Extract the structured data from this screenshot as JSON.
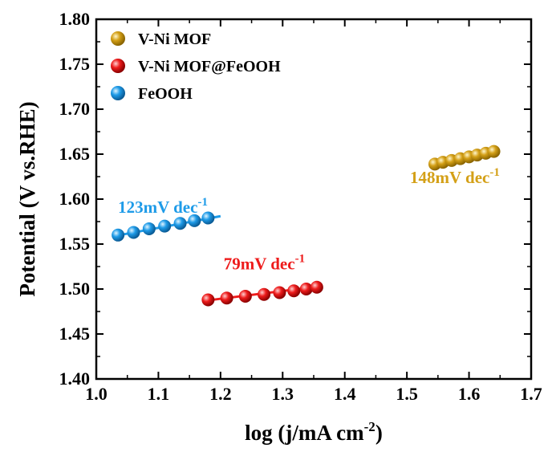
{
  "chart_data": {
    "type": "scatter",
    "xlabel": "log (j/mA cm",
    "xlabel_sup": "-2",
    "xlabel_end": ")",
    "ylabel": "Potential (V vs.RHE)",
    "xlim": [
      1.0,
      1.7
    ],
    "ylim": [
      1.4,
      1.8
    ],
    "xticks": [
      "1.0",
      "1.1",
      "1.2",
      "1.3",
      "1.4",
      "1.5",
      "1.6",
      "1.7"
    ],
    "yticks": [
      "1.40",
      "1.45",
      "1.50",
      "1.55",
      "1.60",
      "1.65",
      "1.70",
      "1.75",
      "1.80"
    ],
    "legend_position": "top-left",
    "series": [
      {
        "name": "V-Ni MOF",
        "color": "#d4a017",
        "x": [
          1.545,
          1.558,
          1.572,
          1.586,
          1.6,
          1.613,
          1.627,
          1.64
        ],
        "y": [
          1.639,
          1.641,
          1.643,
          1.645,
          1.647,
          1.649,
          1.651,
          1.653
        ],
        "fit": {
          "x": [
            1.54,
            1.645
          ],
          "y": [
            1.638,
            1.654
          ]
        }
      },
      {
        "name": "V-Ni MOF@FeOOH",
        "color": "#ee1c1c",
        "x": [
          1.18,
          1.21,
          1.24,
          1.27,
          1.295,
          1.318,
          1.338,
          1.355
        ],
        "y": [
          1.488,
          1.49,
          1.492,
          1.494,
          1.496,
          1.498,
          1.5,
          1.502
        ],
        "fit": {
          "x": [
            1.175,
            1.36
          ],
          "y": [
            1.487,
            1.503
          ]
        }
      },
      {
        "name": "FeOOH",
        "color": "#1e9be8",
        "x": [
          1.035,
          1.06,
          1.085,
          1.11,
          1.135,
          1.158,
          1.18
        ],
        "y": [
          1.56,
          1.563,
          1.567,
          1.57,
          1.573,
          1.576,
          1.579
        ],
        "fit": {
          "x": [
            1.03,
            1.2
          ],
          "y": [
            1.559,
            1.581
          ]
        }
      }
    ],
    "annotations": [
      {
        "text": "123mV dec",
        "sup": "-1",
        "series": 2,
        "x": 1.035,
        "y": 1.585
      },
      {
        "text": "79mV dec",
        "sup": "-1",
        "series": 1,
        "x": 1.205,
        "y": 1.522
      },
      {
        "text": "148mV dec",
        "sup": "-1",
        "series": 0,
        "x": 1.505,
        "y": 1.618
      }
    ]
  }
}
